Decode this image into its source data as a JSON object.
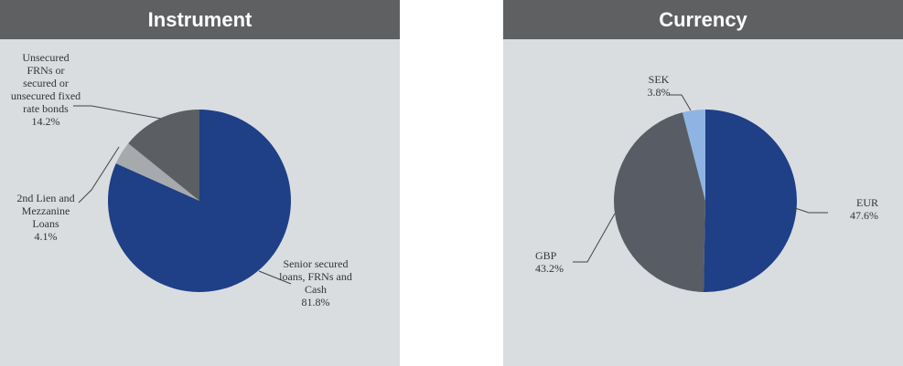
{
  "chart_data": [
    {
      "type": "pie",
      "title": "Instrument",
      "categories": [
        "Senior secured loans, FRNs and Cash",
        "2nd Lien and Mezzanine Loans",
        "Unsecured FRNs or secured or unsecured fixed rate bonds"
      ],
      "values": [
        81.8,
        4.1,
        14.2
      ],
      "value_labels": [
        "81.8%",
        "4.1%",
        "14.2%"
      ],
      "colors": [
        "#1f3f86",
        "#a7aaad",
        "#5b5e63"
      ]
    },
    {
      "type": "pie",
      "title": "Currency",
      "categories": [
        "EUR",
        "GBP",
        "SEK"
      ],
      "values": [
        47.6,
        43.2,
        3.8
      ],
      "value_labels": [
        "47.6%",
        "43.2%",
        "3.8%"
      ],
      "colors": [
        "#1f3f86",
        "#585d65",
        "#8fb4e3"
      ]
    }
  ]
}
